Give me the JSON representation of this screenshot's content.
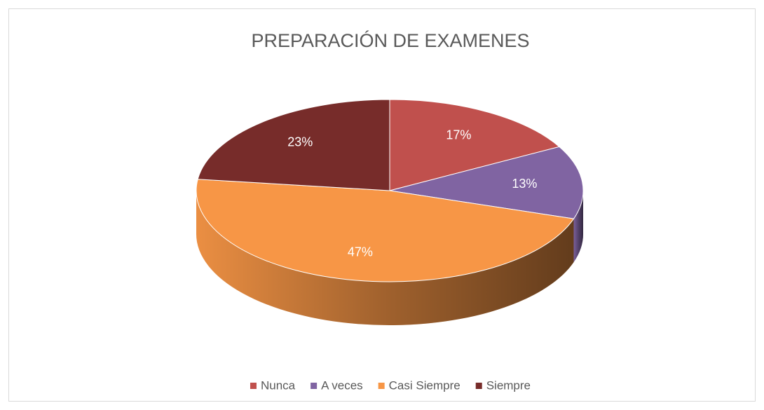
{
  "chart_data": {
    "type": "pie",
    "title": "PREPARACIÓN DE EXAMENES",
    "categories": [
      "Nunca",
      "A veces",
      "Casi Siempre",
      "Siempre"
    ],
    "values": [
      17,
      13,
      47,
      23
    ],
    "value_labels": [
      "17%",
      "13%",
      "47%",
      "23%"
    ],
    "colors": [
      "#c0504d",
      "#8064a2",
      "#f79646",
      "#772c2a"
    ],
    "legend": "bottom"
  }
}
